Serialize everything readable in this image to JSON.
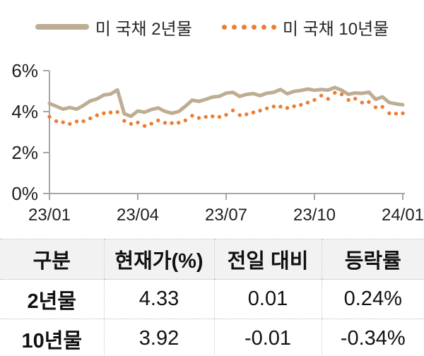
{
  "colors": {
    "series_2yr": "#BDAD93",
    "series_10yr": "#ED7D31",
    "axis": "#A6A6A6",
    "header_bg": "#F2F2F2",
    "text": "#1f1f1f"
  },
  "legend": {
    "item_2yr": "미 국채 2년물",
    "item_10yr": "미 국채 10년물"
  },
  "chart_data": {
    "type": "line",
    "title": "",
    "xlabel": "",
    "ylabel": "",
    "ylim": [
      0,
      6
    ],
    "grid": false,
    "legend_position": "top-center",
    "x_unit": "months since 2023-01",
    "x_range": [
      0,
      12
    ],
    "x_tick_positions": [
      0,
      3,
      6,
      9,
      12
    ],
    "x_tick_labels": [
      "23/01",
      "23/04",
      "23/07",
      "23/10",
      "24/01"
    ],
    "y_tick_values": [
      0,
      2,
      4,
      6
    ],
    "y_tick_labels": [
      "0%",
      "2%",
      "4%",
      "6%"
    ],
    "series": [
      {
        "name": "미 국채 2년물",
        "style": "solid",
        "color": "#BDAD93",
        "values": [
          4.4,
          4.26,
          4.12,
          4.2,
          4.12,
          4.3,
          4.52,
          4.62,
          4.81,
          4.86,
          5.06,
          3.9,
          3.77,
          4.03,
          3.97,
          4.1,
          4.18,
          4.01,
          3.92,
          4.0,
          4.26,
          4.56,
          4.5,
          4.6,
          4.71,
          4.75,
          4.9,
          4.94,
          4.74,
          4.84,
          4.88,
          4.78,
          4.9,
          4.94,
          5.08,
          4.87,
          4.99,
          5.03,
          5.1,
          5.04,
          5.08,
          5.05,
          5.18,
          5.04,
          4.84,
          4.91,
          4.89,
          4.95,
          4.6,
          4.72,
          4.44,
          4.38,
          4.33
        ]
      },
      {
        "name": "미 국채 10년물",
        "style": "dotted",
        "color": "#ED7D31",
        "values": [
          3.75,
          3.53,
          3.48,
          3.4,
          3.52,
          3.53,
          3.67,
          3.82,
          3.92,
          3.96,
          3.98,
          3.55,
          3.4,
          3.47,
          3.3,
          3.41,
          3.57,
          3.45,
          3.44,
          3.46,
          3.57,
          3.8,
          3.69,
          3.74,
          3.77,
          3.74,
          3.84,
          4.06,
          3.83,
          3.87,
          3.96,
          4.05,
          4.16,
          4.25,
          4.24,
          4.18,
          4.26,
          4.33,
          4.44,
          4.57,
          4.78,
          4.62,
          4.92,
          4.84,
          4.57,
          4.63,
          4.44,
          4.47,
          4.21,
          4.23,
          3.92,
          3.9,
          3.92
        ]
      }
    ]
  },
  "table": {
    "headers": [
      "구분",
      "현재가(%)",
      "전일 대비",
      "등락률"
    ],
    "rows": [
      {
        "label": "2년물",
        "price": "4.33",
        "change": "0.01",
        "pct": "0.24%"
      },
      {
        "label": "10년물",
        "price": "3.92",
        "change": "-0.01",
        "pct": "-0.34%"
      }
    ]
  }
}
